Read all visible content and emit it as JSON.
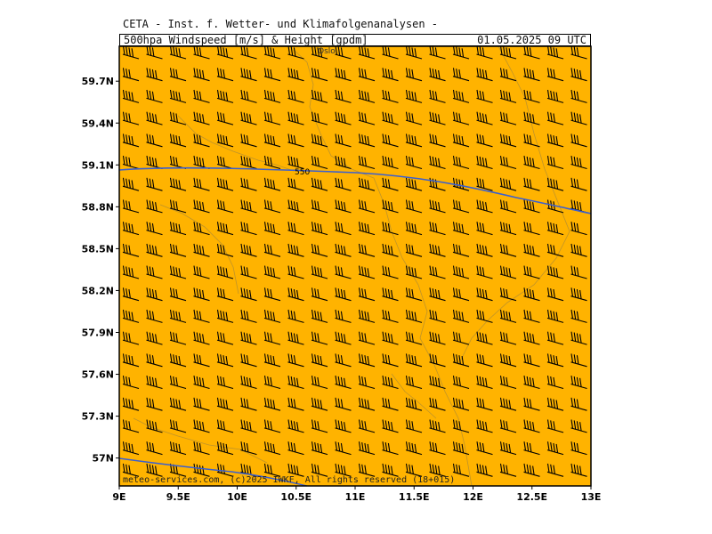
{
  "title": "CETA - Inst. f. Wetter- und Klimafolgenanalysen -",
  "header": {
    "product": "500hpa_Windspeed_[m/s]_&_Height_[gpdm]",
    "datetime": "01.05.2025 09 UTC"
  },
  "footer": "meteo-services.com, (c)2025 IWKF, All rights reserved (18+015)",
  "map": {
    "lon_range": [
      9,
      13
    ],
    "lat_range": [
      56.8,
      59.95
    ],
    "lat_ticks": [
      {
        "value": 57.0,
        "label": "57N"
      },
      {
        "value": 57.3,
        "label": "57.3N"
      },
      {
        "value": 57.6,
        "label": "57.6N"
      },
      {
        "value": 57.9,
        "label": "57.9N"
      },
      {
        "value": 58.2,
        "label": "58.2N"
      },
      {
        "value": 58.5,
        "label": "58.5N"
      },
      {
        "value": 58.8,
        "label": "58.8N"
      },
      {
        "value": 59.1,
        "label": "59.1N"
      },
      {
        "value": 59.4,
        "label": "59.4N"
      },
      {
        "value": 59.7,
        "label": "59.7N"
      }
    ],
    "lon_ticks": [
      {
        "value": 9.0,
        "label": "9E"
      },
      {
        "value": 9.5,
        "label": "9.5E"
      },
      {
        "value": 10.0,
        "label": "10E"
      },
      {
        "value": 10.5,
        "label": "10.5E"
      },
      {
        "value": 11.0,
        "label": "11E"
      },
      {
        "value": 11.5,
        "label": "11.5E"
      },
      {
        "value": 12.0,
        "label": "12E"
      },
      {
        "value": 12.5,
        "label": "12.5E"
      },
      {
        "value": 13.0,
        "label": "13E"
      }
    ],
    "city_label": "Oslo",
    "contour_label": "550",
    "fill_color": "#ffb300",
    "contour_color": "#3a5fd0",
    "barb_color": "#000000",
    "coast_color": "#8a7a4a"
  }
}
